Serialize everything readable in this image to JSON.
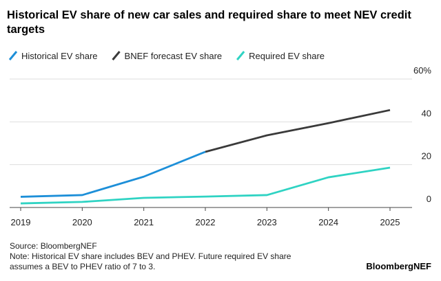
{
  "chart_data": {
    "type": "line",
    "title": "Historical EV share of new car sales and required share to meet NEV credit targets",
    "categories": [
      "2019",
      "2020",
      "2021",
      "2022",
      "2023",
      "2024",
      "2025"
    ],
    "series": [
      {
        "name": "Historical EV share",
        "color": "#1d8fd8",
        "values": [
          5,
          5.8,
          14.4,
          26,
          null,
          null,
          null
        ]
      },
      {
        "name": "BNEF forecast EV share",
        "color": "#3a3a3a",
        "values": [
          null,
          null,
          null,
          26,
          33.7,
          39.4,
          45.5
        ]
      },
      {
        "name": "Required EV share",
        "color": "#2fd3c3",
        "values": [
          1.9,
          2.6,
          4.5,
          5.1,
          5.8,
          14.1,
          18.6
        ]
      }
    ],
    "ylim": [
      0,
      60
    ],
    "yticks": [
      0,
      20,
      40,
      {
        "value": 60,
        "label": "60%"
      }
    ],
    "grid": true,
    "notes": [
      "Source: BloombergNEF",
      "Note: Historical EV share includes BEV and PHEV. Future required EV share",
      "assumes a BEV to PHEV ratio of 7 to 3."
    ],
    "brand": "BloombergNEF"
  }
}
